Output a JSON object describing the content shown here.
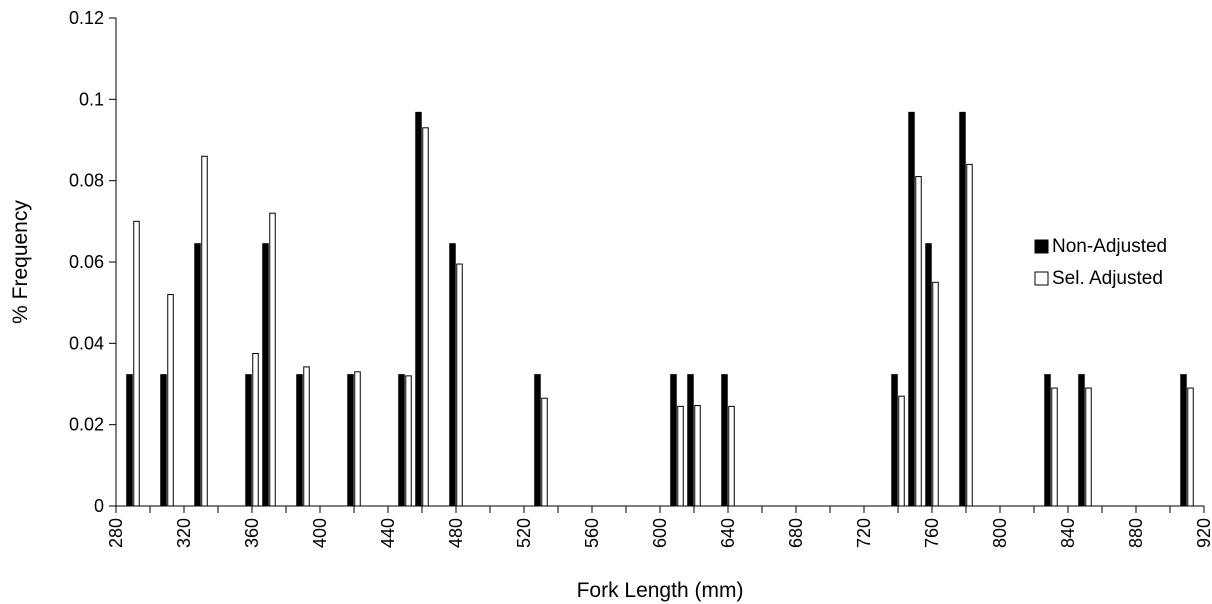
{
  "chart_data": {
    "type": "bar",
    "title": "",
    "xlabel": "Fork Length (mm)",
    "ylabel": "% Frequency",
    "xlim": [
      280,
      920
    ],
    "ylim": [
      0,
      0.12
    ],
    "x_ticks": [
      "280",
      "300",
      "320",
      "340",
      "360",
      "380",
      "400",
      "420",
      "440",
      "460",
      "480",
      "500",
      "520",
      "540",
      "560",
      "580",
      "600",
      "620",
      "640",
      "660",
      "680",
      "700",
      "720",
      "740",
      "760",
      "780",
      "800",
      "820",
      "840",
      "860",
      "880",
      "900",
      "920"
    ],
    "x_tick_labels": [
      "280",
      "320",
      "360",
      "400",
      "440",
      "480",
      "520",
      "560",
      "600",
      "640",
      "680",
      "720",
      "760",
      "800",
      "840",
      "880",
      "920"
    ],
    "y_ticks": [
      "0",
      "0.02",
      "0.04",
      "0.06",
      "0.08",
      "0.1",
      "0.12"
    ],
    "grid": false,
    "legend_position": "right",
    "series": [
      {
        "name": "Non-Adjusted",
        "color": "#000000",
        "points": [
          [
            290,
            0.0323
          ],
          [
            310,
            0.0323
          ],
          [
            330,
            0.0645
          ],
          [
            360,
            0.0323
          ],
          [
            370,
            0.0645
          ],
          [
            390,
            0.0323
          ],
          [
            420,
            0.0323
          ],
          [
            450,
            0.0323
          ],
          [
            460,
            0.0968
          ],
          [
            480,
            0.0645
          ],
          [
            530,
            0.0323
          ],
          [
            610,
            0.0323
          ],
          [
            620,
            0.0323
          ],
          [
            640,
            0.0323
          ],
          [
            740,
            0.0323
          ],
          [
            750,
            0.0968
          ],
          [
            760,
            0.0645
          ],
          [
            780,
            0.0968
          ],
          [
            830,
            0.0323
          ],
          [
            850,
            0.0323
          ],
          [
            910,
            0.0323
          ]
        ]
      },
      {
        "name": "Sel. Adjusted",
        "color": "#ffffff",
        "points": [
          [
            290,
            0.07
          ],
          [
            310,
            0.052
          ],
          [
            330,
            0.086
          ],
          [
            360,
            0.0375
          ],
          [
            370,
            0.072
          ],
          [
            390,
            0.0342
          ],
          [
            420,
            0.033
          ],
          [
            450,
            0.032
          ],
          [
            460,
            0.093
          ],
          [
            480,
            0.0595
          ],
          [
            530,
            0.0265
          ],
          [
            610,
            0.0245
          ],
          [
            620,
            0.0247
          ],
          [
            640,
            0.0245
          ],
          [
            740,
            0.027
          ],
          [
            750,
            0.081
          ],
          [
            760,
            0.055
          ],
          [
            780,
            0.084
          ],
          [
            830,
            0.029
          ],
          [
            850,
            0.029
          ],
          [
            910,
            0.029
          ]
        ]
      }
    ]
  }
}
